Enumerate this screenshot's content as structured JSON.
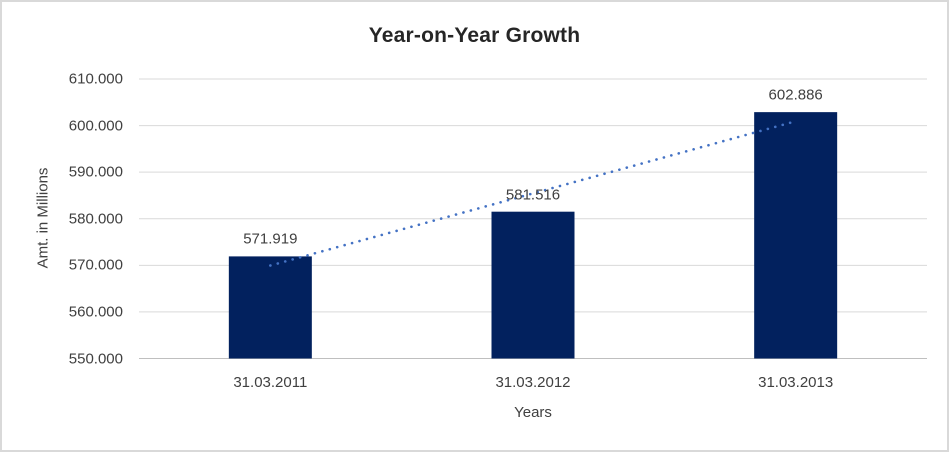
{
  "window": {
    "background": "#ffffff",
    "border_color": "#d9d9d9"
  },
  "chart_data": {
    "type": "bar",
    "title": "Year-on-Year Growth",
    "xlabel": "Years",
    "ylabel": "Amt. in Millions",
    "categories": [
      "31.03.2011",
      "31.03.2012",
      "31.03.2013"
    ],
    "values": [
      571.919,
      581.516,
      602.886
    ],
    "data_labels": [
      "571.919",
      "581.516",
      "602.886"
    ],
    "ytick_values": [
      550,
      560,
      570,
      580,
      590,
      600,
      610
    ],
    "ytick_labels": [
      "550.000",
      "560.000",
      "570.000",
      "580.000",
      "590.000",
      "600.000",
      "610.000"
    ],
    "ylim": [
      550,
      610
    ],
    "grid": true,
    "legend_position": "none",
    "trendline": {
      "type": "linear",
      "style": "dotted",
      "color": "#4472c4"
    },
    "colors": {
      "bar": "#02215e",
      "title_text": "#262626",
      "label_text": "#404040",
      "gridline": "#d9d9d9",
      "axis_line": "#bfbfbf"
    }
  }
}
